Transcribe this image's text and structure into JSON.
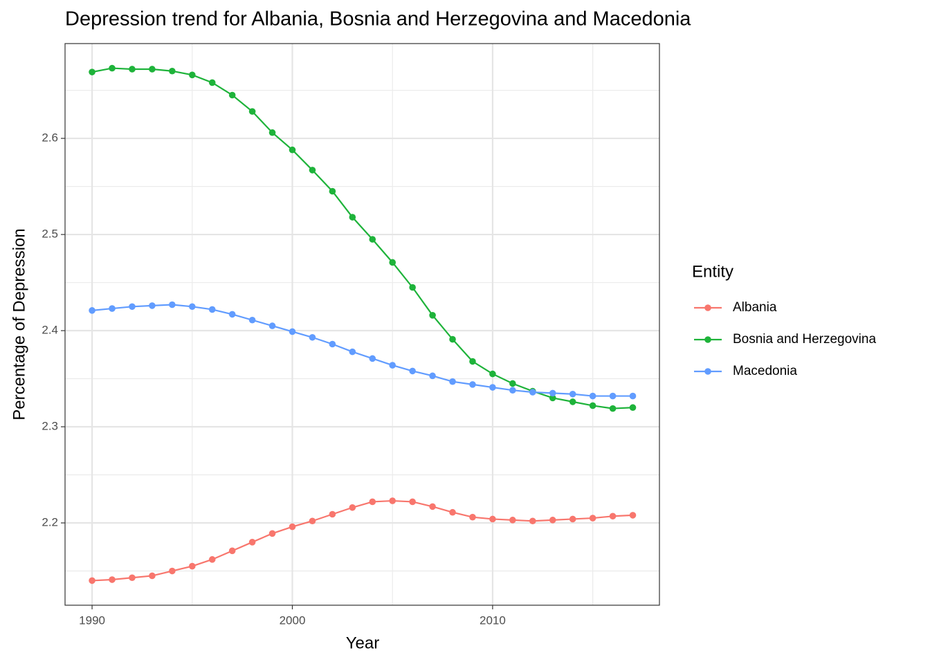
{
  "chart_data": {
    "type": "line",
    "title": "Depression trend for Albania, Bosnia and Herzegovina and Macedonia",
    "x_label": "Year",
    "y_label": "Percentage of Depression",
    "legend_title": "Entity",
    "legend_position": "right",
    "x": [
      1990,
      1991,
      1992,
      1993,
      1994,
      1995,
      1996,
      1997,
      1998,
      1999,
      2000,
      2001,
      2002,
      2003,
      2004,
      2005,
      2006,
      2007,
      2008,
      2009,
      2010,
      2011,
      2012,
      2013,
      2014,
      2015,
      2016,
      2017
    ],
    "series": [
      {
        "name": "Albania",
        "color": "#f8766d",
        "values": [
          2.14,
          2.141,
          2.143,
          2.145,
          2.15,
          2.155,
          2.162,
          2.171,
          2.18,
          2.189,
          2.196,
          2.202,
          2.209,
          2.216,
          2.222,
          2.223,
          2.222,
          2.217,
          2.211,
          2.206,
          2.204,
          2.203,
          2.202,
          2.203,
          2.204,
          2.205,
          2.207,
          2.208
        ]
      },
      {
        "name": "Bosnia and Herzegovina",
        "color": "#1eb33a",
        "values": [
          2.669,
          2.673,
          2.672,
          2.672,
          2.67,
          2.666,
          2.658,
          2.645,
          2.628,
          2.606,
          2.588,
          2.567,
          2.545,
          2.518,
          2.495,
          2.471,
          2.445,
          2.416,
          2.391,
          2.368,
          2.355,
          2.345,
          2.337,
          2.33,
          2.326,
          2.322,
          2.319,
          2.32
        ]
      },
      {
        "name": "Macedonia",
        "color": "#619cff",
        "values": [
          2.421,
          2.423,
          2.425,
          2.426,
          2.427,
          2.425,
          2.422,
          2.417,
          2.411,
          2.405,
          2.399,
          2.393,
          2.386,
          2.378,
          2.371,
          2.364,
          2.358,
          2.353,
          2.347,
          2.344,
          2.341,
          2.338,
          2.336,
          2.335,
          2.334,
          2.332,
          2.332,
          2.332
        ]
      }
    ],
    "xlim": [
      1988.65,
      2018.33
    ],
    "ylim": [
      2.1144,
      2.6986
    ],
    "xticks": [
      1990,
      2000,
      2010
    ],
    "yticks": [
      2.2,
      2.3,
      2.4,
      2.5,
      2.6
    ],
    "x_minor_ticks": [
      1995,
      2005,
      2015
    ],
    "y_minor_ticks": [
      2.15,
      2.25,
      2.35,
      2.45,
      2.55,
      2.65
    ],
    "grid": true
  }
}
